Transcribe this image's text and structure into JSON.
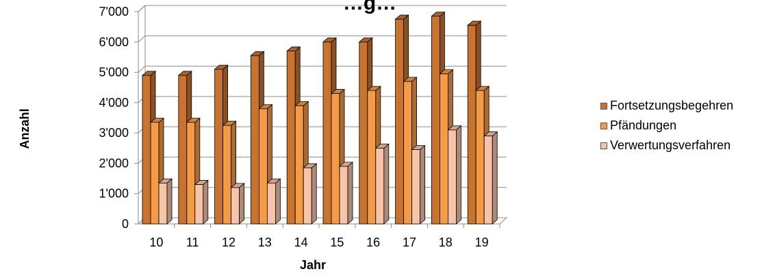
{
  "chart_data": {
    "type": "bar",
    "title": "…g…",
    "xlabel": "Jahr",
    "ylabel": "Anzahl",
    "categories": [
      "10",
      "11",
      "12",
      "13",
      "14",
      "15",
      "16",
      "17",
      "18",
      "19"
    ],
    "ylim": [
      0,
      7000
    ],
    "y_ticks": [
      "0",
      "1'000",
      "2'000",
      "3'000",
      "4'000",
      "5'000",
      "6'000",
      "7'000"
    ],
    "grid": true,
    "three_d": true,
    "legend_position": "right",
    "series": [
      {
        "name": "Fortsetzungsbegehren",
        "color": "#c8742e",
        "values": [
          4900,
          4900,
          5100,
          5550,
          5700,
          6000,
          6000,
          6750,
          6850,
          6550
        ]
      },
      {
        "name": "Pfändungen",
        "color": "#f59a45",
        "values": [
          3350,
          3350,
          3250,
          3800,
          3900,
          4300,
          4400,
          4700,
          4950,
          4400
        ]
      },
      {
        "name": "Verwertungsverfahren",
        "color": "#f8c4a8",
        "values": [
          1350,
          1300,
          1200,
          1350,
          1850,
          1900,
          2500,
          2450,
          3100,
          2900
        ]
      }
    ]
  }
}
